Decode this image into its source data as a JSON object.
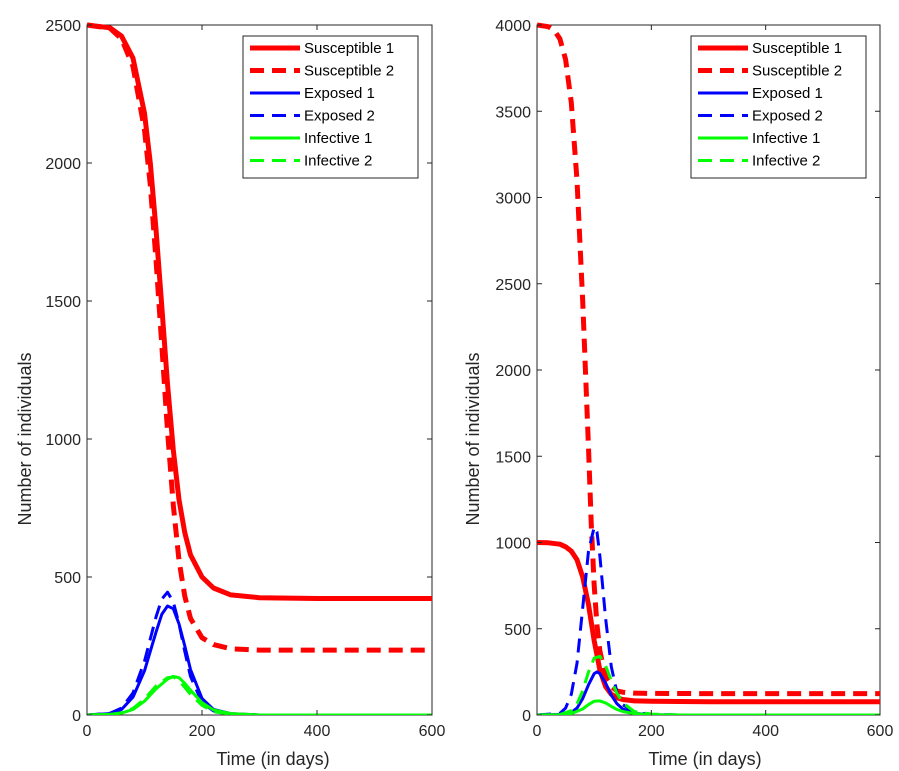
{
  "colors": {
    "susceptible": "#ff0000",
    "exposed": "#0000ff",
    "infective": "#00ff00",
    "axis": "#262626",
    "background": "#ffffff"
  },
  "chart_data": [
    {
      "type": "line",
      "title": "",
      "xlabel": "Time (in days)",
      "ylabel": "Number of individuals",
      "xlim": [
        0,
        600
      ],
      "ylim": [
        0,
        2500
      ],
      "xticks": [
        0,
        200,
        400,
        600
      ],
      "yticks": [
        0,
        500,
        1000,
        1500,
        2000,
        2500
      ],
      "grid": false,
      "legend_position": "top-right",
      "series": [
        {
          "name": "Susceptible 1",
          "color": "#ff0000",
          "style": "solid",
          "width": "thick",
          "x": [
            0,
            40,
            60,
            80,
            100,
            110,
            120,
            130,
            140,
            150,
            160,
            170,
            180,
            200,
            220,
            250,
            300,
            400,
            600
          ],
          "y": [
            2500,
            2490,
            2460,
            2380,
            2180,
            2000,
            1760,
            1480,
            1200,
            960,
            780,
            660,
            580,
            500,
            460,
            435,
            425,
            422,
            422
          ]
        },
        {
          "name": "Susceptible 2",
          "color": "#ff0000",
          "style": "dashed",
          "width": "thick",
          "x": [
            0,
            40,
            60,
            80,
            100,
            110,
            120,
            130,
            140,
            150,
            160,
            170,
            180,
            200,
            220,
            250,
            300,
            400,
            600
          ],
          "y": [
            2500,
            2488,
            2450,
            2350,
            2120,
            1920,
            1650,
            1340,
            1030,
            760,
            560,
            430,
            350,
            280,
            255,
            240,
            235,
            235,
            235
          ]
        },
        {
          "name": "Exposed 1",
          "color": "#0000ff",
          "style": "solid",
          "width": "normal",
          "x": [
            0,
            40,
            60,
            80,
            100,
            120,
            130,
            140,
            150,
            160,
            170,
            180,
            200,
            220,
            250,
            300,
            600
          ],
          "y": [
            0,
            5,
            20,
            65,
            160,
            300,
            365,
            395,
            385,
            330,
            250,
            165,
            60,
            20,
            5,
            0,
            0
          ]
        },
        {
          "name": "Exposed 2",
          "color": "#0000ff",
          "style": "dashed",
          "width": "normal",
          "x": [
            0,
            40,
            60,
            80,
            100,
            120,
            130,
            140,
            150,
            160,
            170,
            180,
            200,
            220,
            250,
            300,
            600
          ],
          "y": [
            0,
            6,
            25,
            80,
            195,
            355,
            420,
            445,
            410,
            330,
            230,
            140,
            45,
            15,
            3,
            0,
            0
          ]
        },
        {
          "name": "Infective 1",
          "color": "#00ff00",
          "style": "solid",
          "width": "normal",
          "x": [
            0,
            40,
            60,
            80,
            100,
            120,
            140,
            150,
            160,
            170,
            180,
            200,
            220,
            250,
            300,
            600
          ],
          "y": [
            0,
            2,
            7,
            20,
            50,
            95,
            130,
            140,
            135,
            115,
            90,
            45,
            18,
            5,
            0,
            0
          ]
        },
        {
          "name": "Infective 2",
          "color": "#00ff00",
          "style": "dashed",
          "width": "normal",
          "x": [
            0,
            40,
            60,
            80,
            100,
            120,
            140,
            150,
            160,
            170,
            180,
            200,
            220,
            250,
            300,
            600
          ],
          "y": [
            0,
            2,
            8,
            24,
            58,
            105,
            135,
            138,
            125,
            100,
            75,
            35,
            12,
            3,
            0,
            0
          ]
        }
      ]
    },
    {
      "type": "line",
      "title": "",
      "xlabel": "Time (in days)",
      "ylabel": "Number of individuals",
      "xlim": [
        0,
        600
      ],
      "ylim": [
        0,
        4000
      ],
      "xticks": [
        0,
        200,
        400,
        600
      ],
      "yticks": [
        0,
        500,
        1000,
        1500,
        2000,
        2500,
        3000,
        3500,
        4000
      ],
      "grid": false,
      "legend_position": "top-right",
      "series": [
        {
          "name": "Susceptible 1",
          "color": "#ff0000",
          "style": "solid",
          "width": "thick",
          "x": [
            0,
            20,
            40,
            50,
            60,
            70,
            80,
            90,
            100,
            110,
            120,
            130,
            140,
            150,
            170,
            200,
            250,
            300,
            600
          ],
          "y": [
            1000,
            998,
            990,
            975,
            950,
            900,
            800,
            640,
            430,
            260,
            165,
            120,
            100,
            90,
            82,
            80,
            78,
            77,
            77
          ]
        },
        {
          "name": "Susceptible 2",
          "color": "#ff0000",
          "style": "dashed",
          "width": "thick",
          "x": [
            0,
            20,
            30,
            40,
            50,
            60,
            70,
            80,
            90,
            95,
            100,
            105,
            110,
            120,
            130,
            140,
            150,
            170,
            200,
            300,
            600
          ],
          "y": [
            4000,
            3990,
            3970,
            3920,
            3800,
            3550,
            3100,
            2400,
            1550,
            1100,
            750,
            520,
            370,
            220,
            165,
            140,
            132,
            127,
            125,
            124,
            124
          ]
        },
        {
          "name": "Exposed 1",
          "color": "#0000ff",
          "style": "solid",
          "width": "normal",
          "x": [
            0,
            40,
            60,
            70,
            80,
            90,
            100,
            105,
            110,
            120,
            130,
            140,
            150,
            170,
            200,
            250,
            600
          ],
          "y": [
            0,
            3,
            15,
            40,
            95,
            175,
            240,
            250,
            240,
            185,
            115,
            65,
            35,
            10,
            2,
            0,
            0
          ]
        },
        {
          "name": "Exposed 2",
          "color": "#0000ff",
          "style": "dashed",
          "width": "normal",
          "x": [
            0,
            40,
            50,
            60,
            70,
            80,
            90,
            100,
            105,
            110,
            120,
            130,
            140,
            150,
            170,
            200,
            250,
            600
          ],
          "y": [
            0,
            10,
            40,
            120,
            300,
            620,
            950,
            1090,
            1060,
            920,
            560,
            280,
            130,
            60,
            15,
            3,
            0,
            0
          ]
        },
        {
          "name": "Infective 1",
          "color": "#00ff00",
          "style": "solid",
          "width": "normal",
          "x": [
            0,
            40,
            60,
            80,
            90,
            100,
            110,
            120,
            130,
            140,
            150,
            170,
            200,
            250,
            600
          ],
          "y": [
            0,
            2,
            8,
            35,
            60,
            80,
            82,
            70,
            50,
            32,
            20,
            8,
            2,
            0,
            0
          ]
        },
        {
          "name": "Infective 2",
          "color": "#00ff00",
          "style": "dashed",
          "width": "normal",
          "x": [
            0,
            40,
            60,
            70,
            80,
            90,
            100,
            110,
            120,
            130,
            140,
            150,
            170,
            200,
            250,
            600
          ],
          "y": [
            0,
            3,
            25,
            65,
            140,
            250,
            330,
            340,
            285,
            200,
            125,
            70,
            20,
            5,
            0,
            0
          ]
        }
      ]
    }
  ]
}
